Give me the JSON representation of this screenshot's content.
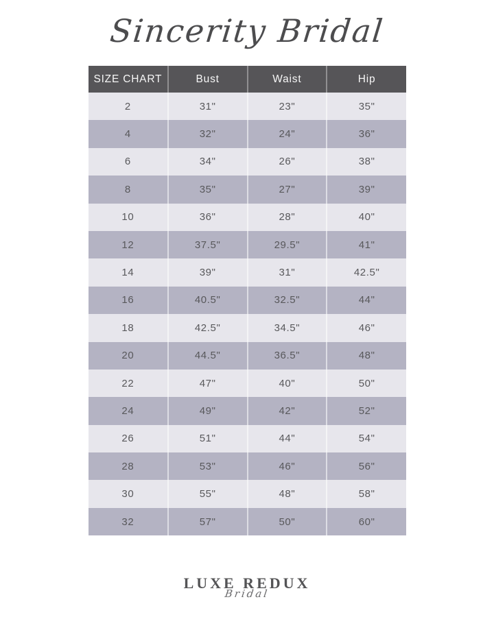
{
  "brand": {
    "title": "Sincerity Bridal"
  },
  "table": {
    "headers": [
      "SIZE CHART",
      "Bust",
      "Waist",
      "Hip"
    ],
    "rows": [
      [
        "2",
        "31\"",
        "23\"",
        "35\""
      ],
      [
        "4",
        "32\"",
        "24\"",
        "36\""
      ],
      [
        "6",
        "34\"",
        "26\"",
        "38\""
      ],
      [
        "8",
        "35\"",
        "27\"",
        "39\""
      ],
      [
        "10",
        "36\"",
        "28\"",
        "40\""
      ],
      [
        "12",
        "37.5\"",
        "29.5\"",
        "41\""
      ],
      [
        "14",
        "39\"",
        "31\"",
        "42.5\""
      ],
      [
        "16",
        "40.5\"",
        "32.5\"",
        "44\""
      ],
      [
        "18",
        "42.5\"",
        "34.5\"",
        "46\""
      ],
      [
        "20",
        "44.5\"",
        "36.5\"",
        "48\""
      ],
      [
        "22",
        "47\"",
        "40\"",
        "50\""
      ],
      [
        "24",
        "49\"",
        "42\"",
        "52\""
      ],
      [
        "26",
        "51\"",
        "44\"",
        "54\""
      ],
      [
        "28",
        "53\"",
        "46\"",
        "56\""
      ],
      [
        "30",
        "55\"",
        "48\"",
        "58\""
      ],
      [
        "32",
        "57\"",
        "50\"",
        "60\""
      ]
    ]
  },
  "footer": {
    "logo_primary": "LUXE REDUX",
    "logo_script": "Bridal"
  },
  "colors": {
    "header_bg": "#565558",
    "row_light": "#E7E6EC",
    "row_dark": "#B4B3C3",
    "text": "#58585B"
  },
  "chart_data": {
    "type": "table",
    "title": "Sincerity Bridal Size Chart",
    "columns": [
      "SIZE CHART",
      "Bust",
      "Waist",
      "Hip"
    ],
    "rows": [
      [
        "2",
        "31\"",
        "23\"",
        "35\""
      ],
      [
        "4",
        "32\"",
        "24\"",
        "36\""
      ],
      [
        "6",
        "34\"",
        "26\"",
        "38\""
      ],
      [
        "8",
        "35\"",
        "27\"",
        "39\""
      ],
      [
        "10",
        "36\"",
        "28\"",
        "40\""
      ],
      [
        "12",
        "37.5\"",
        "29.5\"",
        "41\""
      ],
      [
        "14",
        "39\"",
        "31\"",
        "42.5\""
      ],
      [
        "16",
        "40.5\"",
        "32.5\"",
        "44\""
      ],
      [
        "18",
        "42.5\"",
        "34.5\"",
        "46\""
      ],
      [
        "20",
        "44.5\"",
        "36.5\"",
        "48\""
      ],
      [
        "22",
        "47\"",
        "40\"",
        "50\""
      ],
      [
        "24",
        "49\"",
        "42\"",
        "52\""
      ],
      [
        "26",
        "51\"",
        "44\"",
        "54\""
      ],
      [
        "28",
        "53\"",
        "46\"",
        "56\""
      ],
      [
        "30",
        "55\"",
        "48\"",
        "58\""
      ],
      [
        "32",
        "57\"",
        "50\"",
        "60\""
      ]
    ]
  }
}
